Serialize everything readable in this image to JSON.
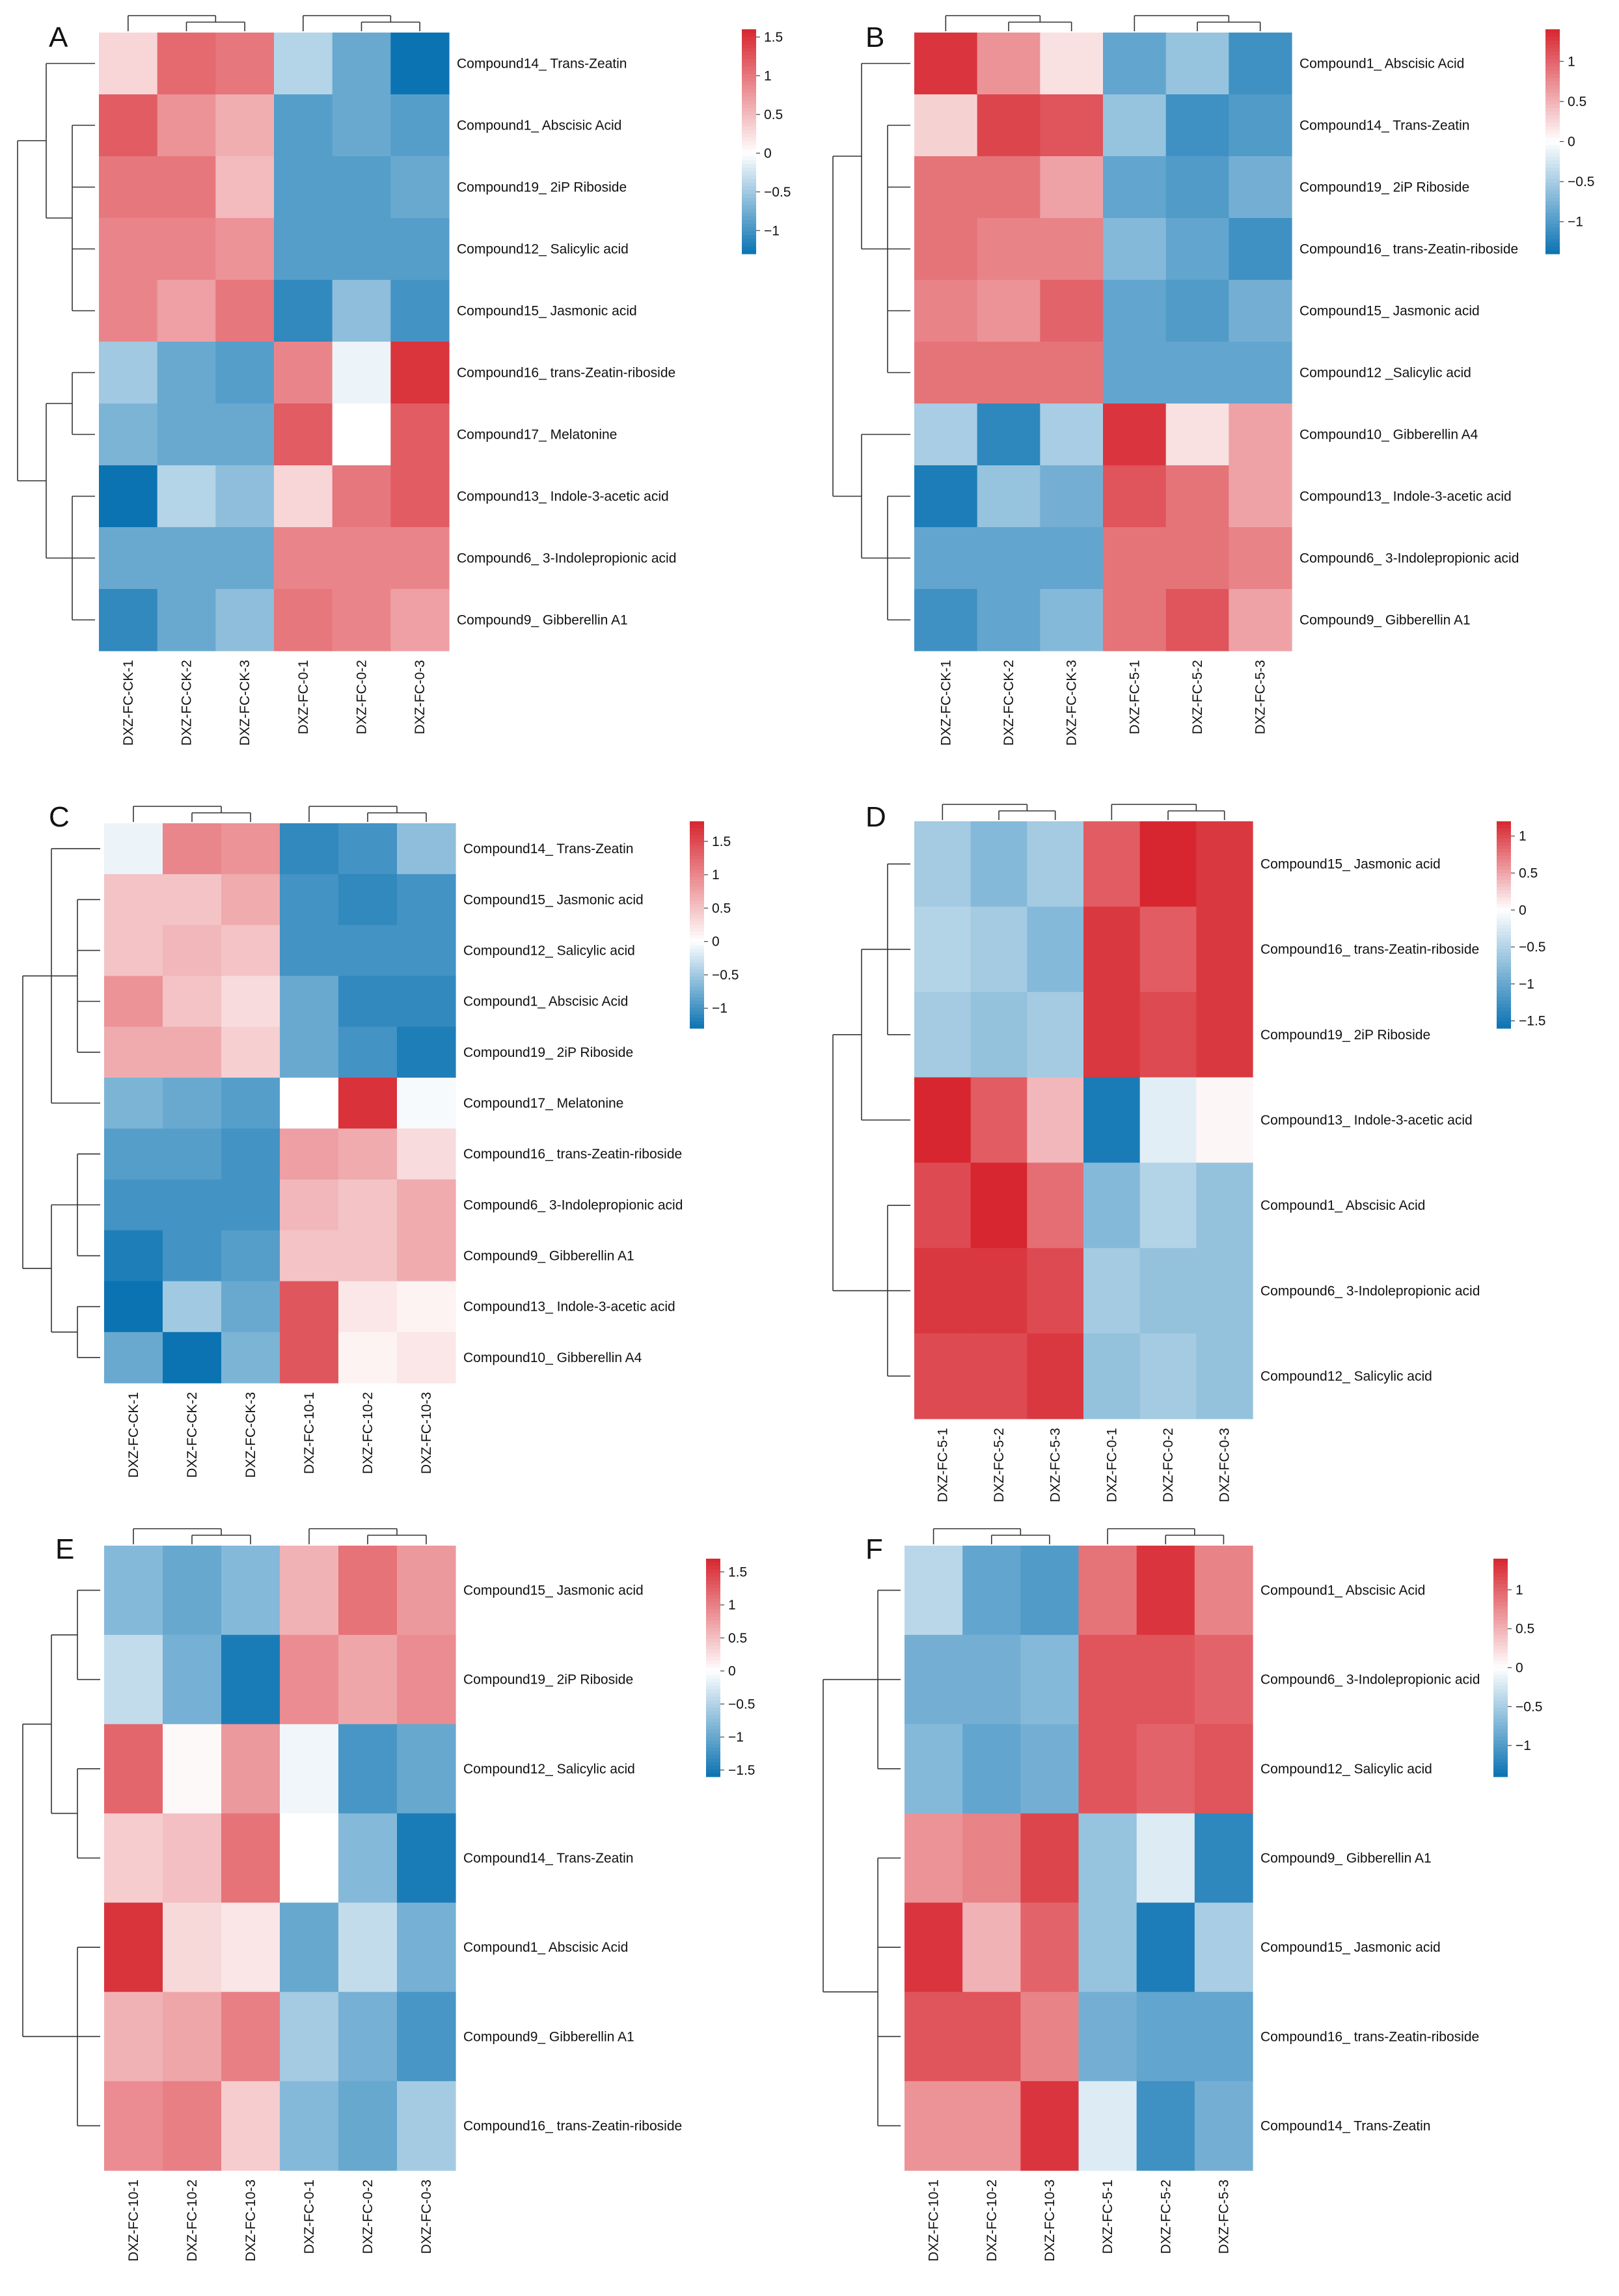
{
  "colors": {
    "low": "#0b73b2",
    "mid": "#ffffff",
    "high": "#d7262f",
    "dendrogram": "#333333"
  },
  "chart_data": [
    {
      "type": "heatmap",
      "panel_label": "A",
      "columns": [
        "DXZ-FC-CK-1",
        "DXZ-FC-CK-2",
        "DXZ-FC-CK-3",
        "DXZ-FC-0-1",
        "DXZ-FC-0-2",
        "DXZ-FC-0-3"
      ],
      "rows": [
        "Compound14_ Trans-Zeatin",
        "Compound1_ Abscisic Acid",
        "Compound19_ 2iP Riboside",
        "Compound12_ Salicylic acid",
        "Compound15_ Jasmonic acid",
        "Compound16_ trans-Zeatin-riboside",
        "Compound17_ Melatonine",
        "Compound13_ Indole-3-acetic acid",
        "Compound6_ 3-Indolepropionic acid",
        "Compound9_ Gibberellin A1"
      ],
      "values": [
        [
          0.3,
          1.1,
          1.0,
          -0.4,
          -0.8,
          -1.3
        ],
        [
          1.2,
          0.8,
          0.6,
          -0.9,
          -0.8,
          -0.9
        ],
        [
          1.0,
          1.0,
          0.5,
          -0.9,
          -0.9,
          -0.8
        ],
        [
          0.9,
          0.9,
          0.8,
          -0.9,
          -0.9,
          -0.9
        ],
        [
          0.9,
          0.7,
          1.0,
          -1.1,
          -0.6,
          -1.0
        ],
        [
          -0.5,
          -0.8,
          -0.9,
          0.9,
          -0.1,
          1.5
        ],
        [
          -0.7,
          -0.8,
          -0.8,
          1.2,
          0.0,
          1.2
        ],
        [
          -1.3,
          -0.4,
          -0.6,
          0.3,
          1.0,
          1.2
        ],
        [
          -0.8,
          -0.8,
          -0.8,
          0.9,
          0.9,
          0.9
        ],
        [
          -1.1,
          -0.8,
          -0.6,
          1.0,
          0.9,
          0.7
        ]
      ],
      "legend_ticks": [
        1.5,
        1,
        0.5,
        0,
        -0.5,
        -1
      ],
      "legend_tick_labels": [
        "1.5",
        "1",
        "0.5",
        "0",
        "−0.5",
        "−1"
      ],
      "legend_range": [
        -1.3,
        1.6
      ]
    },
    {
      "type": "heatmap",
      "panel_label": "B",
      "columns": [
        "DXZ-FC-CK-1",
        "DXZ-FC-CK-2",
        "DXZ-FC-CK-3",
        "DXZ-FC-5-1",
        "DXZ-FC-5-2",
        "DXZ-FC-5-3"
      ],
      "rows": [
        "Compound1_ Abscisic Acid",
        "Compound14_ Trans-Zeatin",
        "Compound19_ 2iP Riboside",
        "Compound16_ trans-Zeatin-riboside",
        "Compound15_ Jasmonic acid",
        "Compound12 _Salicylic acid",
        "Compound10_ Gibberellin A4",
        "Compound13_ Indole-3-acetic acid",
        "Compound6_ 3-Indolepropionic acid",
        "Compound9_ Gibberellin A1"
      ],
      "values": [
        [
          1.3,
          0.7,
          0.2,
          -0.9,
          -0.6,
          -1.1
        ],
        [
          0.3,
          1.2,
          1.1,
          -0.6,
          -1.1,
          -1.0
        ],
        [
          0.9,
          0.9,
          0.6,
          -0.9,
          -1.0,
          -0.8
        ],
        [
          0.9,
          0.8,
          0.8,
          -0.7,
          -0.9,
          -1.1
        ],
        [
          0.8,
          0.7,
          1.0,
          -0.9,
          -1.0,
          -0.8
        ],
        [
          0.9,
          0.9,
          0.9,
          -0.9,
          -0.9,
          -0.9
        ],
        [
          -0.5,
          -1.2,
          -0.5,
          1.3,
          0.2,
          0.6
        ],
        [
          -1.3,
          -0.6,
          -0.8,
          1.1,
          0.9,
          0.6
        ],
        [
          -0.9,
          -0.9,
          -0.9,
          0.9,
          0.9,
          0.8
        ],
        [
          -1.1,
          -0.9,
          -0.7,
          0.9,
          1.1,
          0.6
        ]
      ],
      "legend_ticks": [
        1,
        0.5,
        0,
        -0.5,
        -1
      ],
      "legend_tick_labels": [
        "1",
        "0.5",
        "0",
        "−0.5",
        "−1"
      ],
      "legend_range": [
        -1.4,
        1.4
      ]
    },
    {
      "type": "heatmap",
      "panel_label": "C",
      "columns": [
        "DXZ-FC-CK-1",
        "DXZ-FC-CK-2",
        "DXZ-FC-CK-3",
        "DXZ-FC-10-1",
        "DXZ-FC-10-2",
        "DXZ-FC-10-3"
      ],
      "rows": [
        "Compound14_ Trans-Zeatin",
        "Compound15_ Jasmonic acid",
        "Compound12_ Salicylic acid",
        "Compound1_ Abscisic Acid",
        "Compound19_ 2iP Riboside",
        "Compound17_ Melatonine",
        "Compound16_ trans-Zeatin-riboside",
        "Compound6_ 3-Indolepropionic acid",
        "Compound9_ Gibberellin A1",
        "Compound13_ Indole-3-acetic acid",
        "Compound10_ Gibberellin A4"
      ],
      "values": [
        [
          -0.1,
          1.0,
          0.9,
          -1.1,
          -1.0,
          -0.6
        ],
        [
          0.5,
          0.5,
          0.7,
          -1.0,
          -1.1,
          -1.0
        ],
        [
          0.5,
          0.6,
          0.5,
          -1.0,
          -1.0,
          -1.0
        ],
        [
          0.9,
          0.5,
          0.3,
          -0.8,
          -1.1,
          -1.1
        ],
        [
          0.7,
          0.7,
          0.4,
          -0.8,
          -1.0,
          -1.2
        ],
        [
          -0.7,
          -0.8,
          -0.9,
          0.0,
          1.7,
          -0.05
        ],
        [
          -0.9,
          -0.9,
          -1.0,
          0.8,
          0.7,
          0.3
        ],
        [
          -1.0,
          -1.0,
          -1.0,
          0.6,
          0.5,
          0.7
        ],
        [
          -1.2,
          -1.0,
          -0.9,
          0.5,
          0.5,
          0.7
        ],
        [
          -1.3,
          -0.5,
          -0.8,
          1.4,
          0.2,
          0.1
        ],
        [
          -0.8,
          -1.3,
          -0.7,
          1.4,
          0.1,
          0.2
        ]
      ],
      "legend_ticks": [
        1.5,
        1,
        0.5,
        0,
        -0.5,
        -1
      ],
      "legend_tick_labels": [
        "1.5",
        "1",
        "0.5",
        "0",
        "−0.5",
        "−1"
      ],
      "legend_range": [
        -1.3,
        1.8
      ]
    },
    {
      "type": "heatmap",
      "panel_label": "D",
      "columns": [
        "DXZ-FC-5-1",
        "DXZ-FC-5-2",
        "DXZ-FC-5-3",
        "DXZ-FC-0-1",
        "DXZ-FC-0-2",
        "DXZ-FC-0-3"
      ],
      "rows": [
        "Compound15_ Jasmonic acid",
        "Compound16_ trans-Zeatin-riboside",
        "Compound19_ 2iP Riboside",
        "Compound13_ Indole-3-acetic acid",
        "Compound1_ Abscisic Acid",
        "Compound6_ 3-Indolepropionic acid",
        "Compound12_ Salicylic acid"
      ],
      "values": [
        [
          -0.6,
          -0.8,
          -0.6,
          0.9,
          1.2,
          1.1
        ],
        [
          -0.5,
          -0.6,
          -0.8,
          1.1,
          0.9,
          1.1
        ],
        [
          -0.6,
          -0.7,
          -0.6,
          1.1,
          1.0,
          1.1
        ],
        [
          1.2,
          0.9,
          0.4,
          -1.5,
          -0.2,
          0.05
        ],
        [
          1.0,
          1.2,
          0.8,
          -0.8,
          -0.5,
          -0.7
        ],
        [
          1.1,
          1.1,
          1.0,
          -0.6,
          -0.7,
          -0.7
        ],
        [
          1.0,
          1.0,
          1.1,
          -0.7,
          -0.6,
          -0.7
        ]
      ],
      "legend_ticks": [
        1,
        0.5,
        0,
        -0.5,
        -1,
        -1.5
      ],
      "legend_tick_labels": [
        "1",
        "0.5",
        "0",
        "−0.5",
        "−1",
        "−1.5"
      ],
      "legend_range": [
        -1.6,
        1.2
      ]
    },
    {
      "type": "heatmap",
      "panel_label": "E",
      "columns": [
        "DXZ-FC-10-1",
        "DXZ-FC-10-2",
        "DXZ-FC-10-3",
        "DXZ-FC-0-1",
        "DXZ-FC-0-2",
        "DXZ-FC-0-3"
      ],
      "rows": [
        "Compound15_ Jasmonic acid",
        "Compound19_ 2iP Riboside",
        "Compound12_ Salicylic acid",
        "Compound14_ Trans-Zeatin",
        "Compound1_ Abscisic Acid",
        "Compound9_ Gibberellin A1",
        "Compound16_ trans-Zeatin-riboside"
      ],
      "values": [
        [
          -0.8,
          -1.0,
          -0.8,
          0.6,
          1.1,
          0.8
        ],
        [
          -0.4,
          -0.9,
          -1.5,
          0.9,
          0.7,
          0.9
        ],
        [
          1.2,
          0.05,
          0.8,
          -0.1,
          -1.2,
          -1.0
        ],
        [
          0.4,
          0.5,
          1.1,
          0.0,
          -0.8,
          -1.5
        ],
        [
          1.6,
          0.3,
          0.2,
          -1.0,
          -0.4,
          -0.9
        ],
        [
          0.6,
          0.7,
          1.0,
          -0.6,
          -0.9,
          -1.2
        ],
        [
          0.9,
          1.0,
          0.4,
          -0.8,
          -1.0,
          -0.6
        ]
      ],
      "legend_ticks": [
        1.5,
        1,
        0.5,
        0,
        -0.5,
        -1,
        -1.5
      ],
      "legend_tick_labels": [
        "1.5",
        "1",
        "0.5",
        "0",
        "−0.5",
        "−1",
        "−1.5"
      ],
      "legend_range": [
        -1.6,
        1.7
      ]
    },
    {
      "type": "heatmap",
      "panel_label": "F",
      "columns": [
        "DXZ-FC-10-1",
        "DXZ-FC-10-2",
        "DXZ-FC-10-3",
        "DXZ-FC-5-1",
        "DXZ-FC-5-2",
        "DXZ-FC-5-3"
      ],
      "rows": [
        "Compound1_ Abscisic Acid",
        "Compound6_ 3-Indolepropionic acid",
        "Compound12_ Salicylic acid",
        "Compound9_ Gibberellin A1",
        "Compound15_ Jasmonic acid",
        "Compound16_ trans-Zeatin-riboside",
        "Compound14_ Trans-Zeatin"
      ],
      "values": [
        [
          -0.4,
          -0.9,
          -1.0,
          0.9,
          1.3,
          0.8
        ],
        [
          -0.8,
          -0.8,
          -0.7,
          1.1,
          1.1,
          1.0
        ],
        [
          -0.7,
          -0.9,
          -0.8,
          1.1,
          1.0,
          1.1
        ],
        [
          0.7,
          0.8,
          1.2,
          -0.6,
          -0.2,
          -1.2
        ],
        [
          1.3,
          0.5,
          1.0,
          -0.6,
          -1.3,
          -0.5
        ],
        [
          1.1,
          1.1,
          0.8,
          -0.8,
          -0.9,
          -0.9
        ],
        [
          0.7,
          0.7,
          1.3,
          -0.2,
          -1.1,
          -0.8
        ]
      ],
      "legend_ticks": [
        1,
        0.5,
        0,
        -0.5,
        -1
      ],
      "legend_tick_labels": [
        "1",
        "0.5",
        "0",
        "−0.5",
        "−1"
      ],
      "legend_range": [
        -1.4,
        1.4
      ]
    }
  ]
}
